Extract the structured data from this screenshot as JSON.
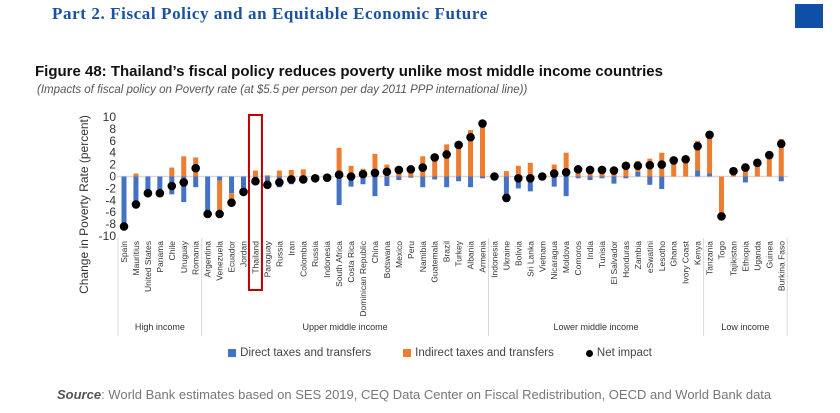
{
  "header": {
    "part_title": "Part 2. Fiscal Policy and an Equitable Economic Future"
  },
  "figure": {
    "title": "Figure 48: Thailand’s fiscal policy reduces poverty unlike most middle income countries",
    "subtitle": "(Impacts of fiscal policy on Poverty rate (at $5.5 per person per day 2011 PPP international line))",
    "source_label": "Source",
    "source_text": ": World Bank estimates based on SES 2019, CEQ Data Center on Fiscal Redistribution, OECD and World Bank data"
  },
  "colors": {
    "direct": "#4472c4",
    "indirect": "#ed7d31",
    "net": "#000000",
    "highlight": "#c00000",
    "header": "#1a52a0"
  },
  "chart_data": {
    "type": "bar",
    "title": "Figure 48: Thailand’s fiscal policy reduces poverty unlike most middle income countries",
    "ylabel": "Change in Poverty Rate (percent)",
    "xlabel": "",
    "ylim": [
      -10,
      10
    ],
    "yticks": [
      10,
      8,
      6,
      4,
      2,
      0,
      -2,
      -4,
      -6,
      -8,
      -10
    ],
    "highlight_category": "Thailand",
    "legend_position": "bottom",
    "legend": [
      "Direct taxes and transfers",
      "Indirect taxes and transfers",
      "Net impact"
    ],
    "groups": [
      {
        "name": "High income",
        "start": 0,
        "end": 6
      },
      {
        "name": "Upper middle income",
        "start": 7,
        "end": 30
      },
      {
        "name": "Lower middle income",
        "start": 31,
        "end": 48
      },
      {
        "name": "Low income",
        "start": 49,
        "end": 55
      }
    ],
    "categories": [
      "Spain",
      "Mauritius",
      "United States",
      "Panama",
      "Chile",
      "Uruguay",
      "Romania",
      "Argentina",
      "Venezuela",
      "Ecuador",
      "Jordan",
      "Thailand",
      "Paraguay",
      "Russia",
      "Iran",
      "Colombia",
      "Russia",
      "Indonesia",
      "South Africa",
      "Costa Rica",
      "Dominican Republic",
      "China",
      "Botswana",
      "Mexico",
      "Peru",
      "Namibia",
      "Guatemala",
      "Brazil",
      "Turkey",
      "Albania",
      "Armenia",
      "Indonesia",
      "Ukraine",
      "Bolivia",
      "Sri Lanka",
      "Vietnam",
      "Nicaragua",
      "Moldova",
      "Comoros",
      "India",
      "Tunisia",
      "El Salvador",
      "Honduras",
      "Zambia",
      "eSwatini",
      "Lesotho",
      "Ghana",
      "Ivory Coast",
      "Kenya",
      "Tanzania",
      "Togo",
      "Tajikistan",
      "Ethiopia",
      "Uganda",
      "Guinea",
      "Burkina Faso"
    ],
    "series": [
      {
        "name": "Direct taxes and transfers",
        "type": "bar",
        "values": [
          -8.2,
          -4.9,
          -2.7,
          -2.8,
          -3.0,
          -4.3,
          -1.8,
          -6.2,
          -0.7,
          -2.8,
          -2.5,
          -0.3,
          -1.8,
          -1.8,
          -1.3,
          -1.1,
          -0.3,
          -0.2,
          -4.8,
          -1.7,
          -1.3,
          -3.3,
          -1.6,
          -0.6,
          -0.2,
          -1.8,
          -0.5,
          -1.8,
          -0.8,
          -1.8,
          -0.3,
          0,
          -4.3,
          -2.0,
          -2.5,
          -0.6,
          -1.7,
          -3.3,
          -0.3,
          -0.6,
          -0.3,
          -1.2,
          -0.3,
          0.8,
          -1.4,
          -2.1,
          0,
          0,
          1.0,
          0.5,
          0,
          0,
          -1.0,
          0,
          0,
          -0.8
        ]
      },
      {
        "name": "Indirect taxes and transfers",
        "type": "bar",
        "values": [
          0,
          0.5,
          0,
          0,
          1.5,
          3.4,
          3.2,
          0,
          -5.5,
          -1.6,
          0,
          1.0,
          0.2,
          1.0,
          1.1,
          1.2,
          0.3,
          0,
          4.8,
          1.8,
          1.3,
          3.8,
          2.0,
          0.8,
          1.3,
          3.4,
          3.5,
          5.4,
          5.5,
          7.8,
          8.8,
          0,
          0.9,
          1.8,
          2.3,
          0.6,
          2.0,
          4.0,
          1.0,
          1.0,
          1.0,
          1.5,
          1.8,
          1.8,
          3.0,
          4.0,
          2.7,
          2.9,
          5.0,
          6.7,
          -6.8,
          0.9,
          2.2,
          2.3,
          3.6,
          6.3
        ]
      },
      {
        "name": "Net impact",
        "type": "scatter",
        "values": [
          -8.4,
          -4.7,
          -2.8,
          -2.8,
          -1.6,
          -1.0,
          1.4,
          -6.3,
          -6.3,
          -4.4,
          -2.6,
          -0.8,
          -1.4,
          -1.0,
          -0.5,
          -0.5,
          -0.3,
          -0.2,
          0.3,
          0.0,
          0.4,
          0.6,
          0.8,
          1.1,
          1.2,
          1.5,
          3.2,
          3.7,
          5.3,
          6.6,
          8.9,
          0.0,
          -3.6,
          -0.3,
          -0.3,
          0.0,
          0.5,
          0.7,
          1.2,
          1.1,
          1.1,
          1.0,
          1.8,
          1.8,
          1.9,
          2.0,
          2.7,
          2.9,
          5.1,
          7.0,
          -6.7,
          0.9,
          1.5,
          2.3,
          3.6,
          5.5
        ]
      }
    ]
  }
}
